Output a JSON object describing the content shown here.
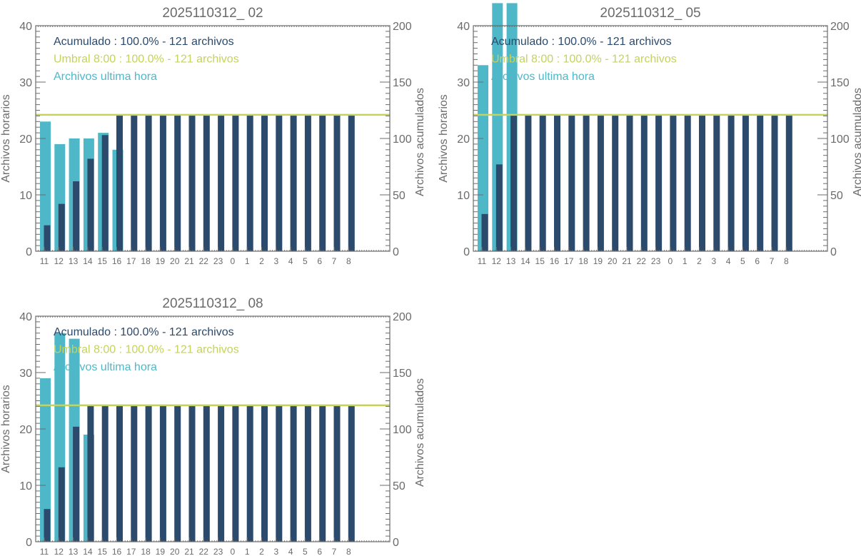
{
  "colors": {
    "hourly": "#4fb8c8",
    "cumulative": "#2c4a6b",
    "threshold": "#c5d35c",
    "axis": "#6b6b6b"
  },
  "chart_data": [
    {
      "type": "bar",
      "title": "2025110312_ 02",
      "ylabel": "Archivos horarios",
      "y2label": "Archivos acumulados",
      "ylim": [
        0,
        40
      ],
      "y2lim": [
        0,
        200
      ],
      "yticks": [
        "0",
        "10",
        "20",
        "30",
        "40"
      ],
      "y2ticks": [
        "0",
        "50",
        "100",
        "150",
        "200"
      ],
      "categories": [
        "11",
        "12",
        "13",
        "14",
        "15",
        "16",
        "17",
        "18",
        "19",
        "20",
        "21",
        "22",
        "23",
        "0",
        "1",
        "2",
        "3",
        "4",
        "5",
        "6",
        "7",
        "8"
      ],
      "hourly": [
        23,
        19,
        20,
        20,
        21,
        18
      ],
      "cumulative": [
        23,
        42,
        62,
        82,
        103,
        121,
        121,
        121,
        121,
        121,
        121,
        121,
        121,
        121,
        121,
        121,
        121,
        121,
        121,
        121,
        121,
        121
      ],
      "threshold": 121,
      "legend": [
        "Acumulado : 100.0% - 121 archivos",
        "Umbral 8:00 : 100.0% - 121 archivos",
        "Archivos ultima hora"
      ]
    },
    {
      "type": "bar",
      "title": "2025110312_ 05",
      "ylabel": "Archivos horarios",
      "y2label": "Archivos acumulados",
      "ylim": [
        0,
        40
      ],
      "y2lim": [
        0,
        200
      ],
      "yticks": [
        "0",
        "10",
        "20",
        "30",
        "40"
      ],
      "y2ticks": [
        "0",
        "50",
        "100",
        "150",
        "200"
      ],
      "categories": [
        "11",
        "12",
        "13",
        "14",
        "15",
        "16",
        "17",
        "18",
        "19",
        "20",
        "21",
        "22",
        "23",
        "0",
        "1",
        "2",
        "3",
        "4",
        "5",
        "6",
        "7",
        "8"
      ],
      "hourly": [
        33,
        44,
        44
      ],
      "cumulative": [
        33,
        77,
        121,
        121,
        121,
        121,
        121,
        121,
        121,
        121,
        121,
        121,
        121,
        121,
        121,
        121,
        121,
        121,
        121,
        121,
        121,
        121
      ],
      "threshold": 121,
      "legend": [
        "Acumulado : 100.0% - 121 archivos",
        "Umbral 8:00 : 100.0% - 121 archivos",
        "Archivos ultima hora"
      ]
    },
    {
      "type": "bar",
      "title": "2025110312_ 08",
      "ylabel": "Archivos horarios",
      "y2label": "Archivos acumulados",
      "ylim": [
        0,
        40
      ],
      "y2lim": [
        0,
        200
      ],
      "yticks": [
        "0",
        "10",
        "20",
        "30",
        "40"
      ],
      "y2ticks": [
        "0",
        "50",
        "100",
        "150",
        "200"
      ],
      "categories": [
        "11",
        "12",
        "13",
        "14",
        "15",
        "16",
        "17",
        "18",
        "19",
        "20",
        "21",
        "22",
        "23",
        "0",
        "1",
        "2",
        "3",
        "4",
        "5",
        "6",
        "7",
        "8"
      ],
      "hourly": [
        29,
        37,
        36,
        19
      ],
      "cumulative": [
        29,
        66,
        102,
        121,
        121,
        121,
        121,
        121,
        121,
        121,
        121,
        121,
        121,
        121,
        121,
        121,
        121,
        121,
        121,
        121,
        121,
        121
      ],
      "threshold": 121,
      "legend": [
        "Acumulado : 100.0% - 121 archivos",
        "Umbral 8:00 : 100.0% - 121 archivos",
        "Archivos ultima hora"
      ]
    }
  ]
}
